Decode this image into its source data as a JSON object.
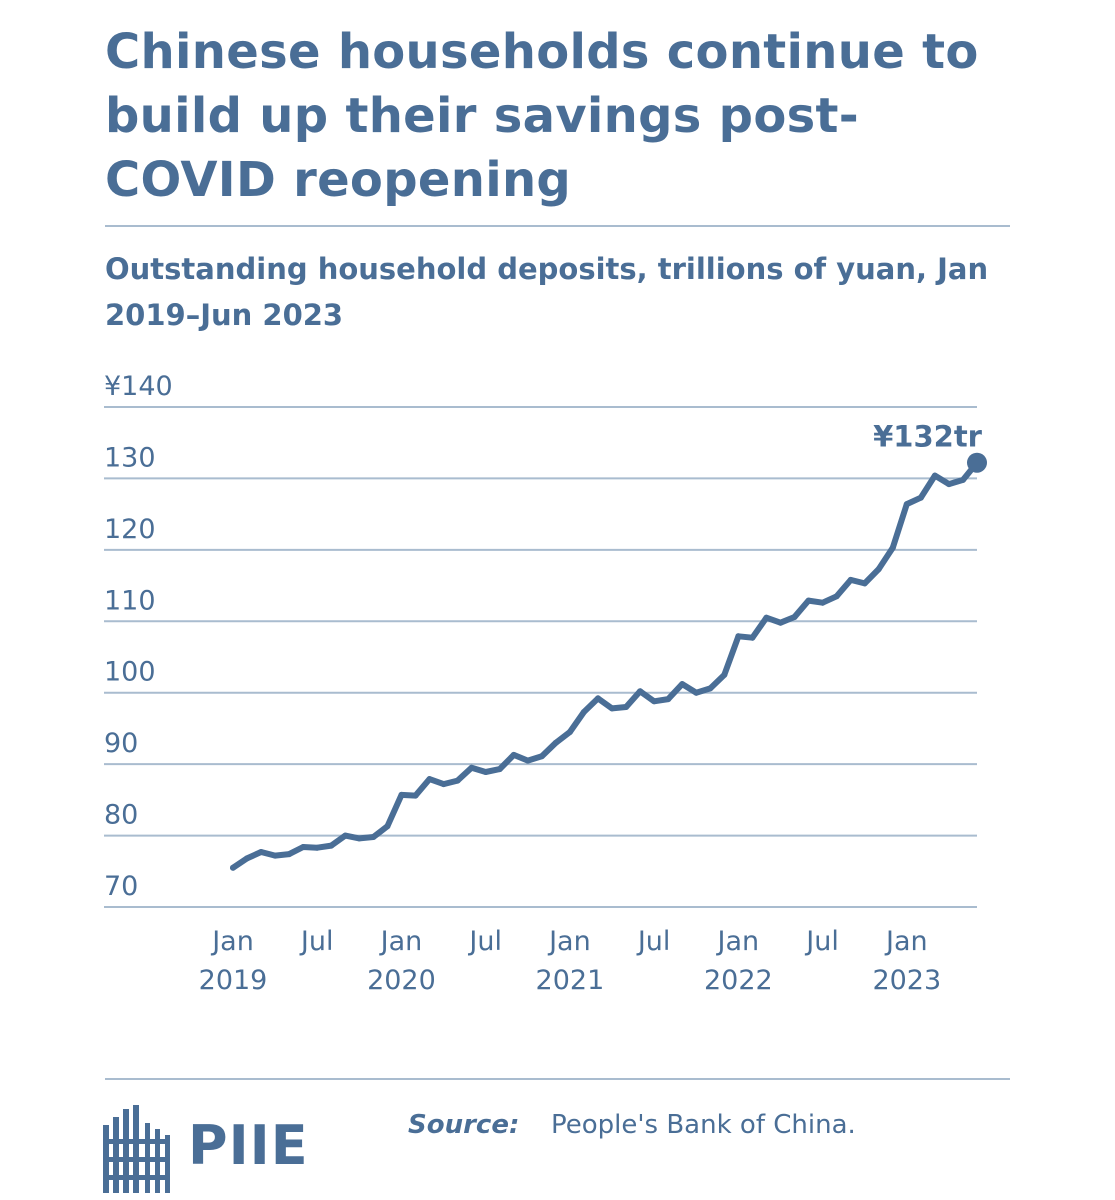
{
  "header": {
    "title": "Chinese households continue to build up their savings post-COVID reopening",
    "subtitle": "Outstanding household deposits, trillions of yuan, Jan 2019–Jun 2023"
  },
  "footer": {
    "brand": "PIIE",
    "source_label": "Source:",
    "source_text": "People's Bank of China."
  },
  "colors": {
    "accent": "#4a6e96",
    "grid": "#a9bccf"
  },
  "chart_data": {
    "type": "line",
    "title": "Chinese households continue to build up their savings post-COVID reopening",
    "subtitle": "Outstanding household deposits, trillions of yuan, Jan 2019–Jun 2023",
    "xlabel": "",
    "ylabel": "",
    "ylim": [
      70,
      140
    ],
    "yticks": [
      "¥140",
      "130",
      "120",
      "110",
      "100",
      "90",
      "80",
      "70"
    ],
    "ytick_values": [
      140,
      130,
      120,
      110,
      100,
      90,
      80,
      70
    ],
    "xticks": [
      {
        "month": "Jan",
        "year": "2019",
        "date": "2019-01"
      },
      {
        "month": "Jul",
        "year": "",
        "date": "2019-07"
      },
      {
        "month": "Jan",
        "year": "2020",
        "date": "2020-01"
      },
      {
        "month": "Jul",
        "year": "",
        "date": "2020-07"
      },
      {
        "month": "Jan",
        "year": "2021",
        "date": "2021-01"
      },
      {
        "month": "Jul",
        "year": "",
        "date": "2021-07"
      },
      {
        "month": "Jan",
        "year": "2022",
        "date": "2022-01"
      },
      {
        "month": "Jul",
        "year": "",
        "date": "2022-07"
      },
      {
        "month": "Jan",
        "year": "2023",
        "date": "2023-01"
      }
    ],
    "grid": true,
    "annotation": {
      "text": "¥132tr",
      "date": "2023-06",
      "value": 132.2
    },
    "series": [
      {
        "x": [
          "2019-01",
          "2019-02",
          "2019-03",
          "2019-04",
          "2019-05",
          "2019-06",
          "2019-07",
          "2019-08",
          "2019-09",
          "2019-10",
          "2019-11",
          "2019-12",
          "2020-01",
          "2020-02",
          "2020-03",
          "2020-04",
          "2020-05",
          "2020-06",
          "2020-07",
          "2020-08",
          "2020-09",
          "2020-10",
          "2020-11",
          "2020-12",
          "2021-01",
          "2021-02",
          "2021-03",
          "2021-04",
          "2021-05",
          "2021-06",
          "2021-07",
          "2021-08",
          "2021-09",
          "2021-10",
          "2021-11",
          "2021-12",
          "2022-01",
          "2022-02",
          "2022-03",
          "2022-04",
          "2022-05",
          "2022-06",
          "2022-07",
          "2022-08",
          "2022-09",
          "2022-10",
          "2022-11",
          "2022-12",
          "2023-01",
          "2023-02",
          "2023-03",
          "2023-04",
          "2023-05",
          "2023-06"
        ],
        "values": [
          75.5,
          76.8,
          77.7,
          77.2,
          77.4,
          78.4,
          78.3,
          78.6,
          80.0,
          79.6,
          79.8,
          81.3,
          85.7,
          85.6,
          87.9,
          87.2,
          87.7,
          89.5,
          88.9,
          89.3,
          91.3,
          90.5,
          91.1,
          93.0,
          94.5,
          97.3,
          99.2,
          97.8,
          98.0,
          100.2,
          98.8,
          99.1,
          101.2,
          100.0,
          100.6,
          102.5,
          107.9,
          107.7,
          110.5,
          109.8,
          110.6,
          112.9,
          112.6,
          113.5,
          115.8,
          115.3,
          117.3,
          120.3,
          126.4,
          127.3,
          130.4,
          129.2,
          129.8,
          132.2
        ]
      }
    ]
  }
}
